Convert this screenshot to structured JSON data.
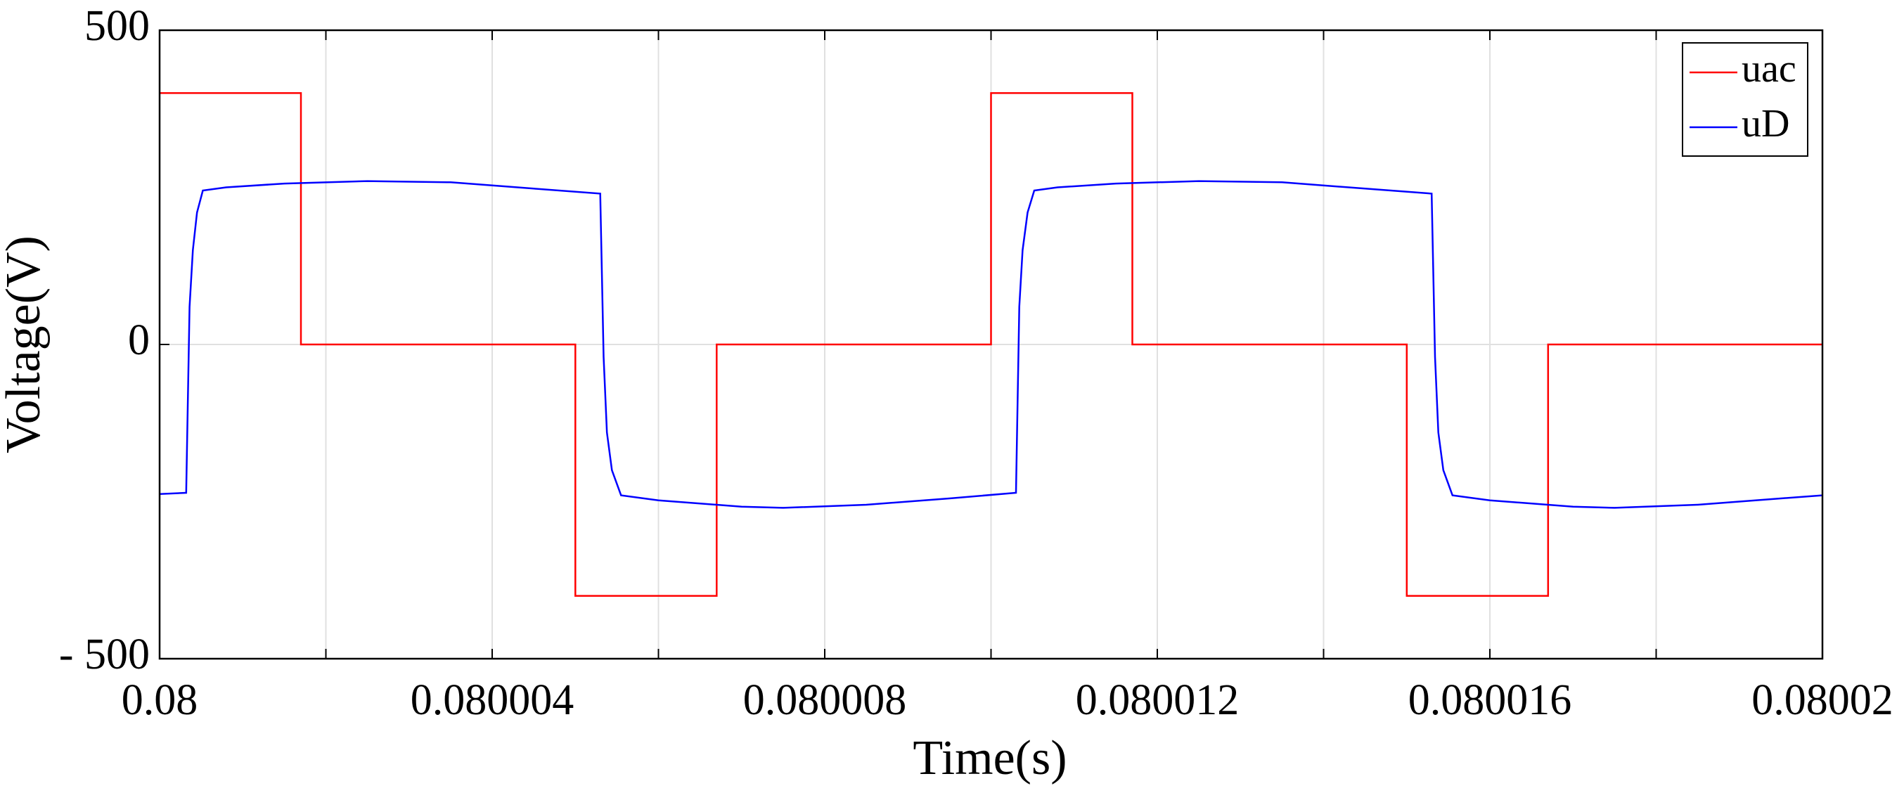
{
  "chart_data": {
    "type": "line",
    "xlabel": "Time(s)",
    "ylabel": "Voltage(V)",
    "xlim": [
      0.08,
      0.08002
    ],
    "xticks": [
      0.08,
      0.080004,
      0.080008,
      0.080012,
      0.080016,
      0.08002
    ],
    "xminor_ticks": [
      0.080002,
      0.080006,
      0.08001,
      0.080014,
      0.080018
    ],
    "ylim": [
      -500,
      500
    ],
    "yticks": [
      {
        "value": -500,
        "label": "- 500"
      },
      0,
      500
    ],
    "grid": true,
    "legend": "upper right",
    "series": [
      {
        "name": "uac",
        "color": "#ff0000",
        "x": [
          0.08,
          0.0800017,
          0.0800017,
          0.080005,
          0.080005,
          0.0800067,
          0.0800067,
          0.08001,
          0.08001,
          0.0800117,
          0.0800117,
          0.080015,
          0.080015,
          0.0800167,
          0.0800167,
          0.08002
        ],
        "values": [
          400,
          400,
          0,
          0,
          -400,
          -400,
          0,
          0,
          400,
          400,
          0,
          0,
          -400,
          -400,
          0,
          0
        ]
      },
      {
        "name": "uD",
        "color": "#0000ff",
        "x": [
          0.08,
          0.08000032,
          0.08000036,
          0.0800004,
          0.08000045,
          0.08000052,
          0.0800008,
          0.0800015,
          0.0800025,
          0.0800035,
          0.0800045,
          0.0800053,
          0.08000534,
          0.08000538,
          0.08000544,
          0.08000555,
          0.080006,
          0.080007,
          0.0800075,
          0.0800085,
          0.0800095,
          0.0800103,
          0.08001034,
          0.08001038,
          0.08001044,
          0.08001052,
          0.0800108,
          0.0800115,
          0.0800125,
          0.0800135,
          0.0800145,
          0.0800153,
          0.08001534,
          0.08001538,
          0.08001544,
          0.08001555,
          0.080016,
          0.080017,
          0.0800175,
          0.0800185,
          0.0800195,
          0.08002
        ],
        "values": [
          -238,
          -236,
          60,
          150,
          210,
          245,
          250,
          256,
          260,
          258,
          248,
          240,
          -20,
          -140,
          -200,
          -240,
          -248,
          -258,
          -260,
          -255,
          -245,
          -236,
          60,
          150,
          210,
          245,
          250,
          256,
          260,
          258,
          248,
          240,
          -20,
          -140,
          -200,
          -240,
          -248,
          -258,
          -260,
          -255,
          -245,
          -240
        ]
      }
    ]
  }
}
